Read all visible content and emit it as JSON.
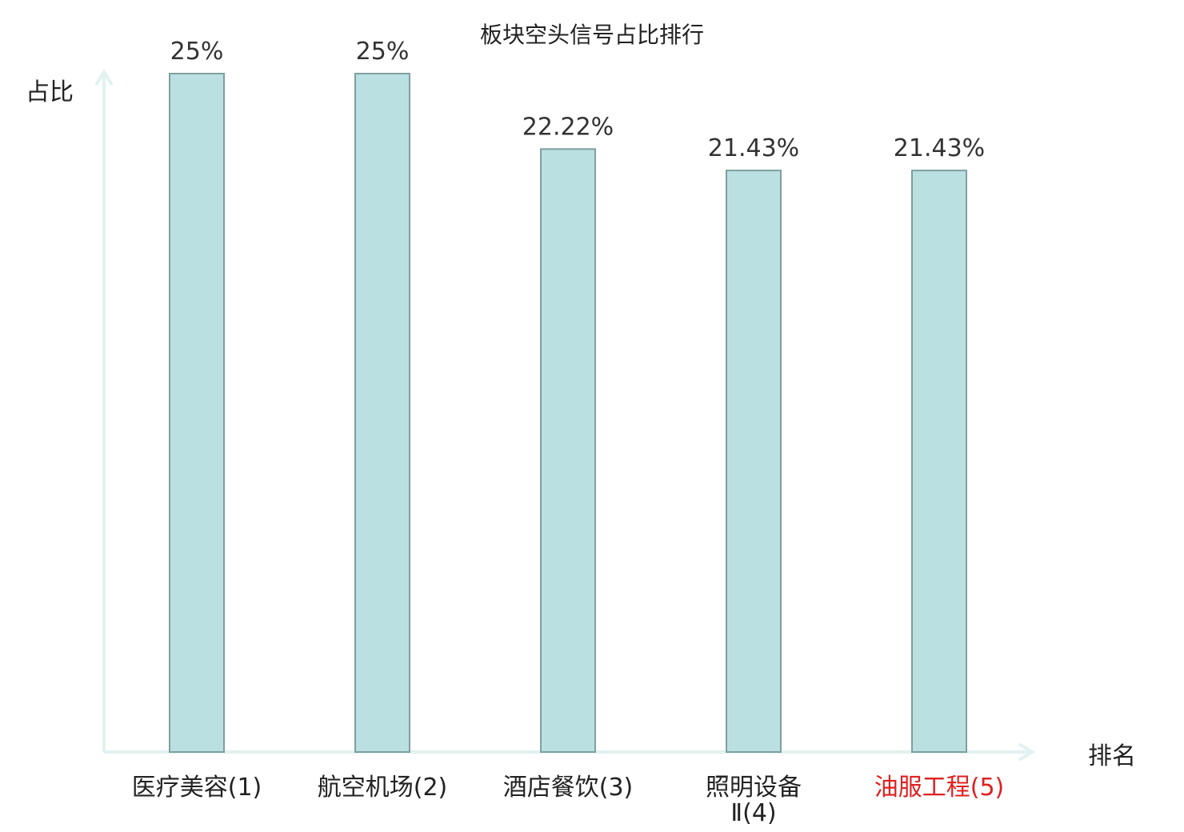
{
  "chart_data": {
    "type": "bar",
    "title": "板块空头信号占比排行",
    "xlabel": "排名",
    "ylabel": "占比",
    "categories": [
      "医疗美容(1)",
      "航空机场(2)",
      "酒店餐饮(3)",
      "照明设备Ⅱ(4)",
      "油服工程(5)"
    ],
    "category_lines": [
      [
        "医疗美容(1)"
      ],
      [
        "航空机场(2)"
      ],
      [
        "酒店餐饮(3)"
      ],
      [
        "照明设备",
        "Ⅱ(4)"
      ],
      [
        "油服工程(5)"
      ]
    ],
    "values": [
      25,
      25,
      22.22,
      21.43,
      21.43
    ],
    "value_labels": [
      "25%",
      "25%",
      "22.22%",
      "21.43%",
      "21.43%"
    ],
    "highlight_index": 4,
    "ylim": [
      0,
      25
    ],
    "grid": false,
    "legend": "none",
    "colors": {
      "bar_fill": "#bbe0e1",
      "bar_stroke": "#7f9fa0",
      "axis": "#e0f2ef",
      "text": "#222222",
      "value_text": "#333333",
      "highlight": "#e02020"
    }
  }
}
